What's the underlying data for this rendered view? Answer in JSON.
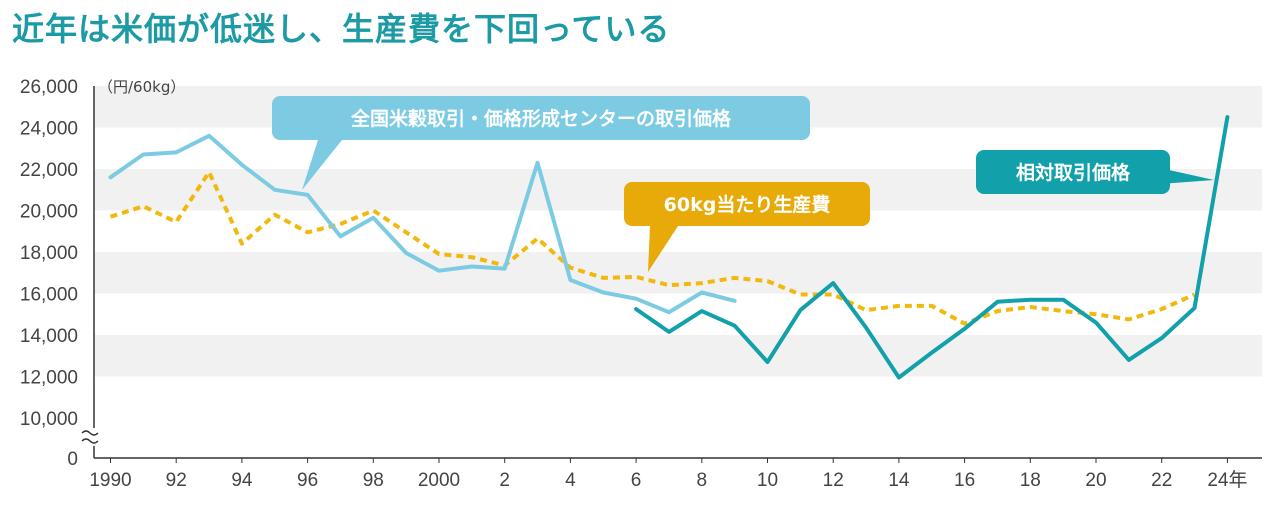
{
  "headline": "近年は米価が低迷し、生産費を下回っている",
  "chart_data": {
    "type": "line",
    "unit_label": "（円/60kg）",
    "ylim": [
      10000,
      26000
    ],
    "y_ticks": [
      "26,000",
      "24,000",
      "22,000",
      "20,000",
      "18,000",
      "16,000",
      "14,000",
      "12,000",
      "10,000",
      "0"
    ],
    "axis_break": true,
    "x_ticks": [
      {
        "year": 1990,
        "label": "1990"
      },
      {
        "year": 1992,
        "label": "92"
      },
      {
        "year": 1994,
        "label": "94"
      },
      {
        "year": 1996,
        "label": "96"
      },
      {
        "year": 1998,
        "label": "98"
      },
      {
        "year": 2000,
        "label": "2000"
      },
      {
        "year": 2002,
        "label": "2"
      },
      {
        "year": 2004,
        "label": "4"
      },
      {
        "year": 2006,
        "label": "6"
      },
      {
        "year": 2008,
        "label": "8"
      },
      {
        "year": 2010,
        "label": "10"
      },
      {
        "year": 2012,
        "label": "12"
      },
      {
        "year": 2014,
        "label": "14"
      },
      {
        "year": 2016,
        "label": "16"
      },
      {
        "year": 2018,
        "label": "18"
      },
      {
        "year": 2020,
        "label": "20"
      },
      {
        "year": 2022,
        "label": "22"
      },
      {
        "year": 2024,
        "label": "24年"
      }
    ],
    "series": [
      {
        "name": "全国米穀取引・価格形成センターの取引価格",
        "color": "#7ccbe2",
        "style": "solid",
        "points": [
          [
            1990,
            21600
          ],
          [
            1991,
            22700
          ],
          [
            1992,
            22800
          ],
          [
            1993,
            23600
          ],
          [
            1994,
            22200
          ],
          [
            1995,
            21000
          ],
          [
            1996,
            20750
          ],
          [
            1997,
            18750
          ],
          [
            1998,
            19650
          ],
          [
            1999,
            17950
          ],
          [
            2000,
            17100
          ],
          [
            2001,
            17300
          ],
          [
            2002,
            17200
          ],
          [
            2003,
            22300
          ],
          [
            2004,
            16650
          ],
          [
            2005,
            16050
          ],
          [
            2006,
            15750
          ],
          [
            2007,
            15100
          ],
          [
            2008,
            16050
          ],
          [
            2009,
            15650
          ]
        ]
      },
      {
        "name": "60kg当たり生産費",
        "color": "#f2b80d",
        "style": "dotted",
        "points": [
          [
            1990,
            19700
          ],
          [
            1991,
            20200
          ],
          [
            1992,
            19450
          ],
          [
            1993,
            21850
          ],
          [
            1994,
            18400
          ],
          [
            1995,
            19800
          ],
          [
            1996,
            18950
          ],
          [
            1997,
            19350
          ],
          [
            1998,
            20000
          ],
          [
            1999,
            18950
          ],
          [
            2000,
            17900
          ],
          [
            2001,
            17750
          ],
          [
            2002,
            17350
          ],
          [
            2003,
            18650
          ],
          [
            2004,
            17250
          ],
          [
            2005,
            16750
          ],
          [
            2006,
            16800
          ],
          [
            2007,
            16400
          ],
          [
            2008,
            16500
          ],
          [
            2009,
            16750
          ],
          [
            2010,
            16600
          ],
          [
            2011,
            15950
          ],
          [
            2012,
            15950
          ],
          [
            2013,
            15200
          ],
          [
            2014,
            15400
          ],
          [
            2015,
            15400
          ],
          [
            2016,
            14550
          ],
          [
            2017,
            15150
          ],
          [
            2018,
            15350
          ],
          [
            2019,
            15150
          ],
          [
            2020,
            15000
          ],
          [
            2021,
            14750
          ],
          [
            2022,
            15250
          ],
          [
            2023,
            15950
          ]
        ]
      },
      {
        "name": "相対取引価格",
        "color": "#12a0aa",
        "style": "solid",
        "points": [
          [
            2006,
            15250
          ],
          [
            2007,
            14150
          ],
          [
            2008,
            15150
          ],
          [
            2009,
            14450
          ],
          [
            2010,
            12700
          ],
          [
            2011,
            15200
          ],
          [
            2012,
            16500
          ],
          [
            2013,
            14350
          ],
          [
            2014,
            11950
          ],
          [
            2015,
            13150
          ],
          [
            2016,
            14300
          ],
          [
            2017,
            15600
          ],
          [
            2018,
            15700
          ],
          [
            2019,
            15700
          ],
          [
            2020,
            14600
          ],
          [
            2021,
            12800
          ],
          [
            2022,
            13850
          ],
          [
            2023,
            15300
          ],
          [
            2024,
            24500
          ]
        ]
      }
    ],
    "callouts": [
      {
        "text": "全国米穀取引・価格形成センターの取引価格",
        "bg": "#7ccbe2"
      },
      {
        "text": "60kg当たり生産費",
        "bg": "#e8aa09"
      },
      {
        "text": "相対取引価格",
        "bg": "#12a0aa"
      }
    ],
    "band_colors": [
      "#f1f1f1",
      "#ffffff"
    ]
  }
}
